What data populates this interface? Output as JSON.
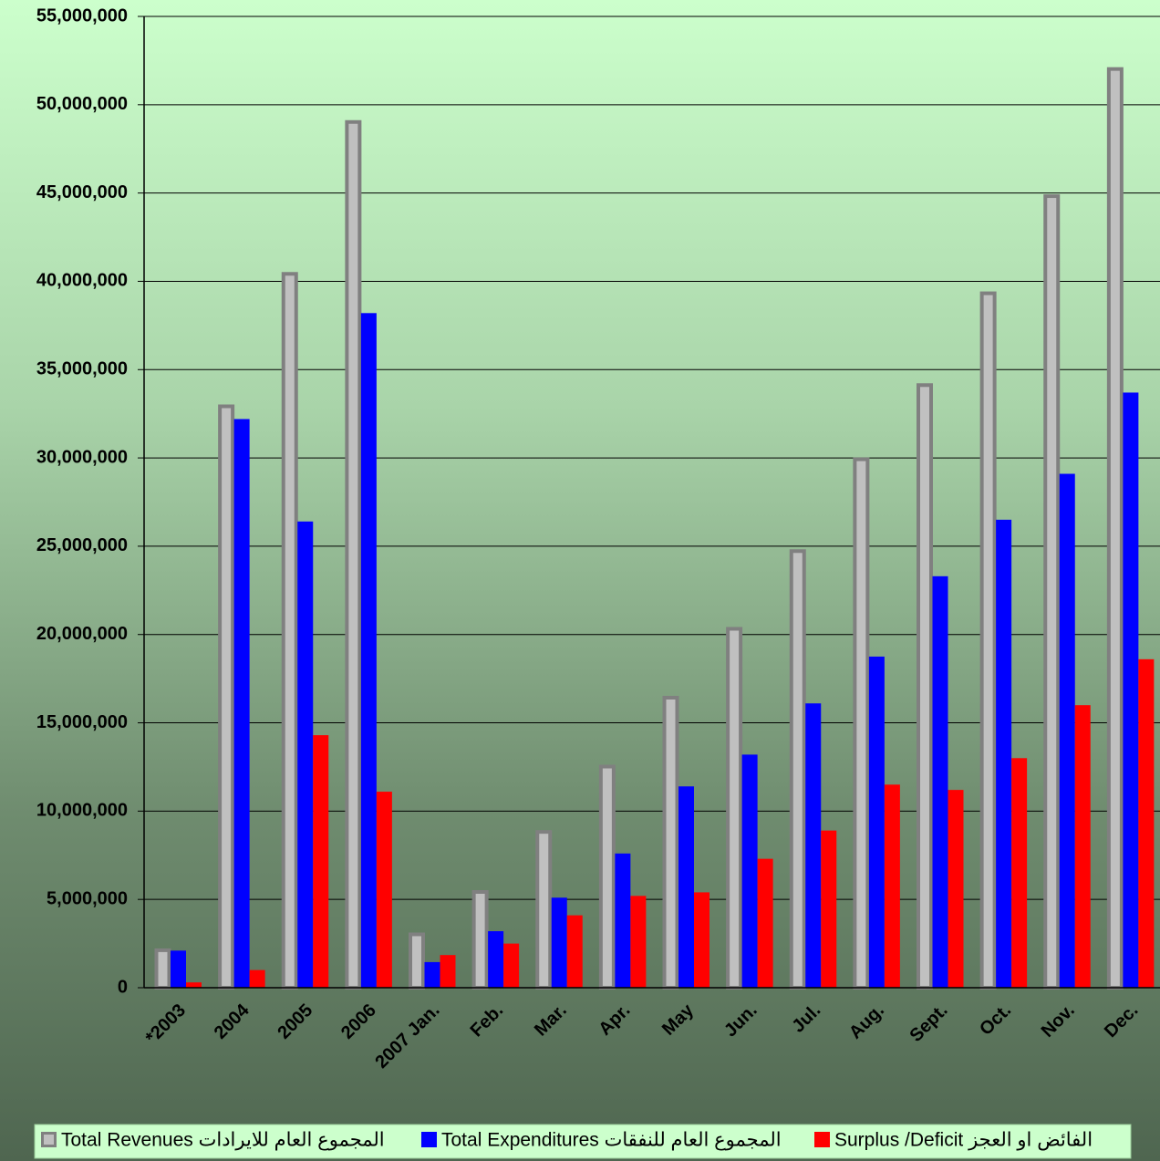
{
  "chart_data": {
    "type": "bar",
    "categories": [
      "*2003",
      "2004",
      "2005",
      "2006",
      "2007 Jan.",
      "Feb.",
      "Mar.",
      "Apr.",
      "May",
      "Jun.",
      "Jul.",
      "Aug.",
      "Sept.",
      "Oct.",
      "Nov.",
      "Dec."
    ],
    "series": [
      {
        "name": "Total Revenues المجموع العام للايرادات",
        "color": "#c0c0c0",
        "values": [
          2200000,
          33000000,
          40500000,
          49100000,
          3100000,
          5500000,
          8900000,
          12600000,
          16500000,
          20400000,
          24800000,
          30000000,
          34200000,
          39400000,
          44900000,
          52100000
        ]
      },
      {
        "name": "Total Expenditures المجموع العام للنفقات",
        "color": "#0000ff",
        "values": [
          2100000,
          32200000,
          26400000,
          38200000,
          1450000,
          3200000,
          5100000,
          7600000,
          11400000,
          13200000,
          16100000,
          18750000,
          23300000,
          26500000,
          29100000,
          33700000
        ]
      },
      {
        "name": "Surplus /Deficit الفائض او العجز",
        "color": "#ff0000",
        "values": [
          300000,
          1000000,
          14300000,
          11100000,
          1850000,
          2500000,
          4100000,
          5200000,
          5400000,
          7300000,
          8900000,
          11500000,
          11200000,
          13000000,
          16000000,
          18600000
        ]
      }
    ],
    "ylim": [
      0,
      55000000
    ],
    "yticks": [
      0,
      {
        "value": 5000000,
        "label": "5,000,000"
      },
      {
        "value": 10000000,
        "label": "10,000,000"
      },
      {
        "value": 15000000,
        "label": "15,000,000"
      },
      {
        "value": 20000000,
        "label": "20,000,000"
      },
      {
        "value": 25000000,
        "label": "25,000,000"
      },
      {
        "value": 30000000,
        "label": "30,000,000"
      },
      {
        "value": 35000000,
        "label": "35,000,000"
      },
      {
        "value": 40000000,
        "label": "40,000,000"
      },
      {
        "value": 45000000,
        "label": "45,000,000"
      },
      {
        "value": 50000000,
        "label": "50,000,000"
      },
      {
        "value": 55000000,
        "label": "55,000,000"
      }
    ],
    "grid": true,
    "legend": "bottom"
  }
}
